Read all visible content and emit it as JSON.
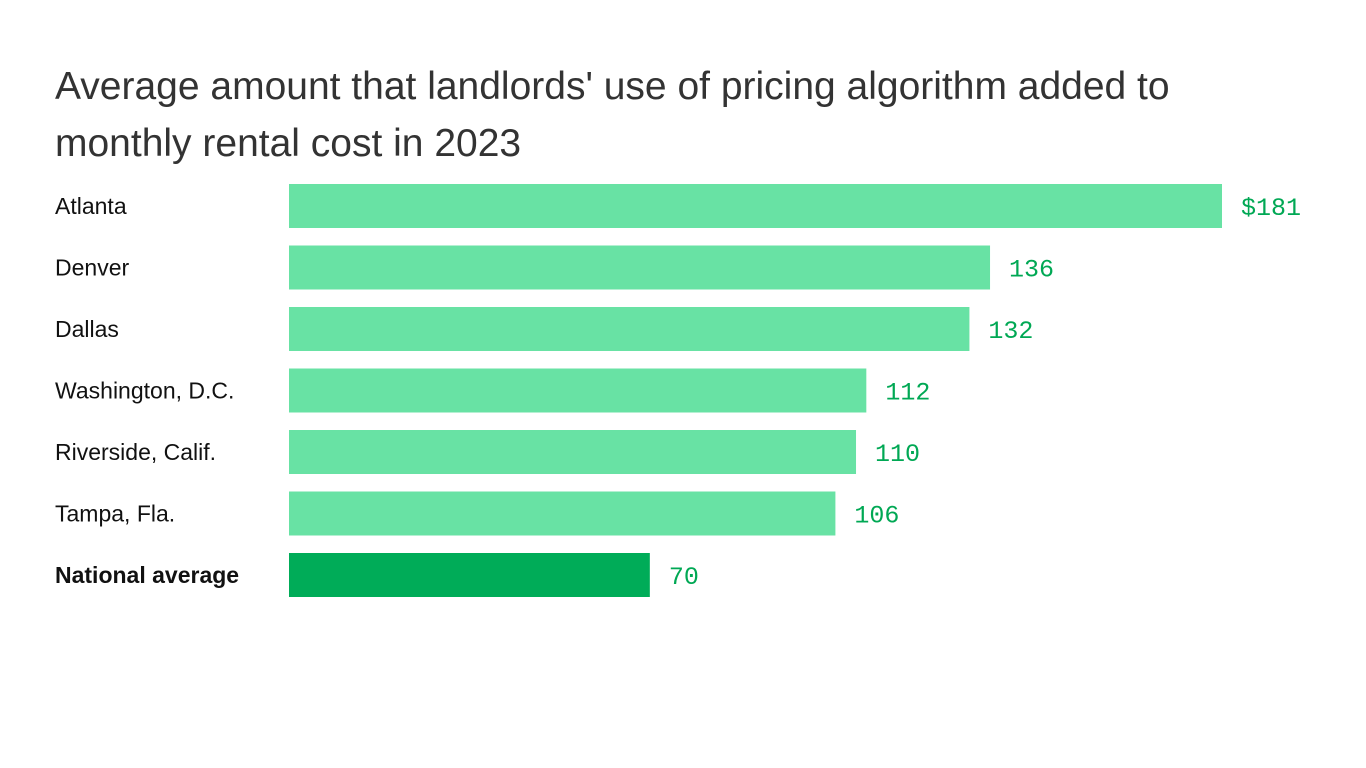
{
  "chart_data": {
    "type": "bar",
    "orientation": "horizontal",
    "title": "Average amount that landlords' use of pricing algorithm added to monthly rental cost in 2023",
    "categories": [
      "Atlanta",
      "Denver",
      "Dallas",
      "Washington, D.C.",
      "Riverside, Calif.",
      "Tampa, Fla.",
      "National average"
    ],
    "values": [
      181,
      136,
      132,
      112,
      110,
      106,
      70
    ],
    "value_labels": [
      "$181",
      "136",
      "132",
      "112",
      "110",
      "106",
      "70"
    ],
    "highlight": "National average",
    "xlim": [
      0,
      181
    ],
    "grid": false,
    "colors": {
      "bar": "#68e2a4",
      "highlight_bar": "#00ac58",
      "value_label": "#00a854",
      "title": "#333333"
    }
  }
}
